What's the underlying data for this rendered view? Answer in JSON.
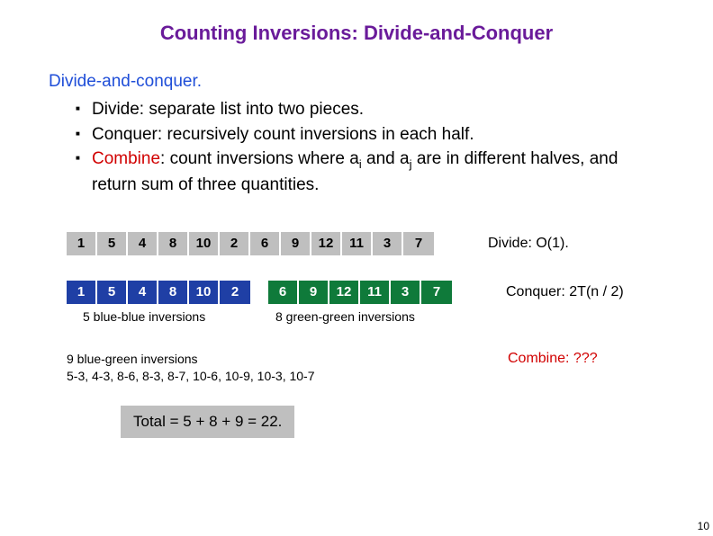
{
  "colors": {
    "title": "#6a1b9a",
    "section_head": "#1f4ed8",
    "combine_word": "#d10000",
    "combine_label": "#d10000",
    "gray": "#bfbfbf",
    "blue": "#1f3fa5",
    "green": "#0f7a3a"
  },
  "title": "Counting Inversions:  Divide-and-Conquer",
  "section_head": "Divide-and-conquer.",
  "bullets": {
    "b1": "Divide:  separate list into two pieces.",
    "b2": "Conquer: recursively count inversions in each half.",
    "b3_pre": "Combine",
    "b3_mid1": ": count inversions where a",
    "b3_sub1": "i",
    "b3_mid2": " and a",
    "b3_sub2": "j",
    "b3_tail": " are in different halves, and return sum of three quantities."
  },
  "array_full": [
    "1",
    "5",
    "4",
    "8",
    "10",
    "2",
    "6",
    "9",
    "12",
    "11",
    "3",
    "7"
  ],
  "array_left": [
    "1",
    "5",
    "4",
    "8",
    "10",
    "2"
  ],
  "array_right": [
    "6",
    "9",
    "12",
    "11",
    "3",
    "7"
  ],
  "labels": {
    "divide": "Divide:  O(1).",
    "conquer": "Conquer:  2T(n / 2)",
    "combine": "Combine:  ???",
    "blue_caption": "5 blue-blue inversions",
    "green_caption": "8 green-green inversions",
    "bg_title": "9 blue-green inversions",
    "bg_list": "5-3, 4-3, 8-6, 8-3, 8-7, 10-6, 10-9, 10-3, 10-7",
    "total": "Total = 5 + 8 + 9 = 22."
  },
  "page_number": "10"
}
